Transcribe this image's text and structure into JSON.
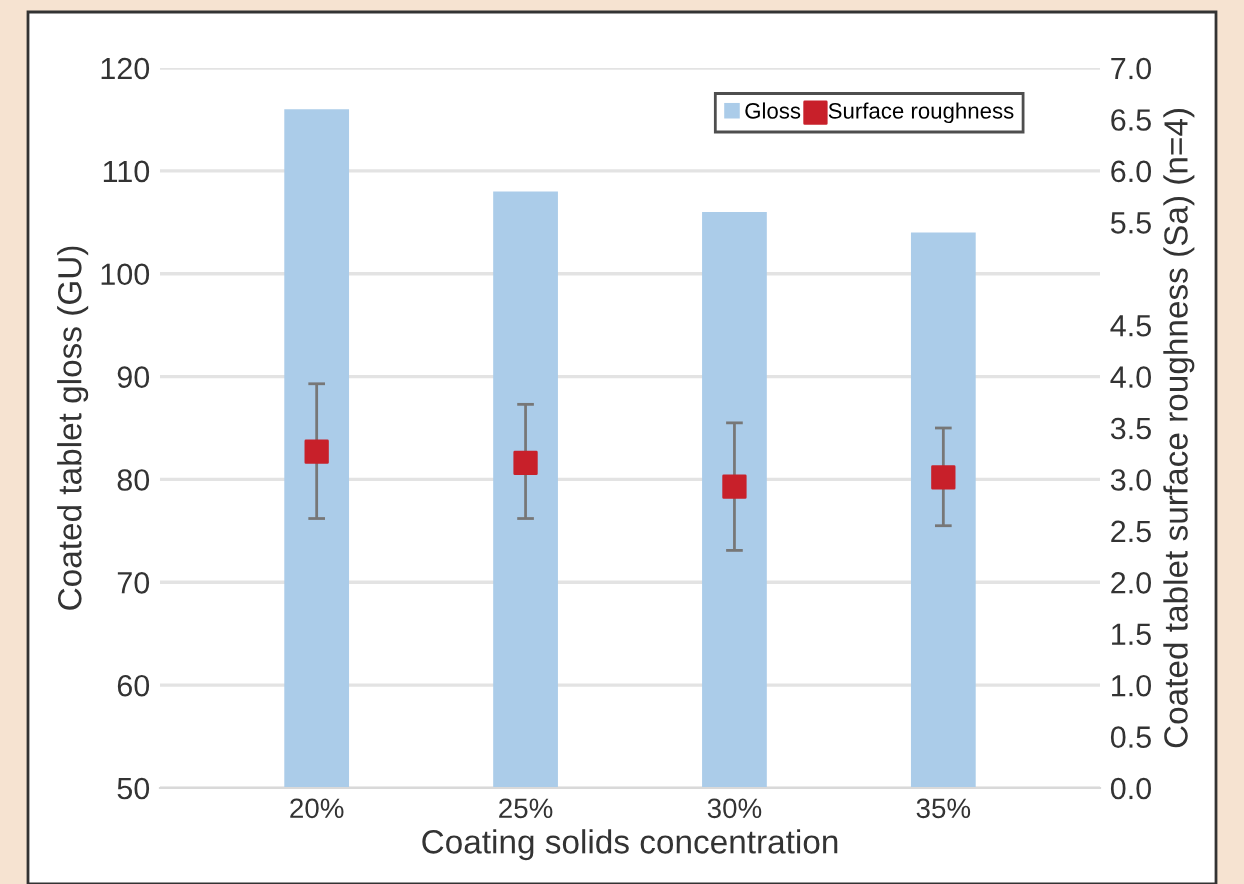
{
  "chart_data": {
    "type": "bar",
    "xlabel": "Coating solids concentration",
    "ylabel": "Coated tablet gloss (GU)",
    "y2label": "Coated tablet surface roughness (Sa) (n=4)",
    "categories": [
      "20%",
      "25%",
      "30%",
      "35%"
    ],
    "series": [
      {
        "name": "Gloss",
        "color": "#abcce9",
        "values": [
          116,
          108,
          106,
          104
        ]
      },
      {
        "name": "Surface roughness",
        "type": "scatter",
        "axis": "y2",
        "color": "#c8202a",
        "marker": "square",
        "values": [
          3.27,
          3.16,
          2.93,
          3.02
        ],
        "errors": [
          [
            2.62,
            3.93
          ],
          [
            2.62,
            3.73
          ],
          [
            2.31,
            3.55
          ],
          [
            2.55,
            3.5
          ]
        ]
      }
    ],
    "ylim": [
      50,
      120
    ],
    "yticks": [
      50,
      60,
      70,
      80,
      90,
      100,
      110,
      120
    ],
    "y2lim": [
      0,
      7
    ],
    "y2ticks": [
      {
        "value": 0,
        "label": "0.0"
      },
      {
        "value": 0.5,
        "label": "0.5"
      },
      {
        "value": 1,
        "label": "1.0"
      },
      {
        "value": 1.5,
        "label": "1.5"
      },
      {
        "value": 2,
        "label": "2.0"
      },
      {
        "value": 2.5,
        "label": "2.5"
      },
      {
        "value": 3,
        "label": "3.0"
      },
      {
        "value": 3.5,
        "label": "3.5"
      },
      {
        "value": 4,
        "label": "4.0"
      },
      {
        "value": 4.5,
        "label": "4.5"
      },
      {
        "value": 5.5,
        "label": "5.5"
      },
      {
        "value": 6,
        "label": "6.0"
      },
      {
        "value": 6.5,
        "label": "6.5"
      },
      {
        "value": 7,
        "label": "7.0"
      }
    ],
    "grid": "y",
    "legend": "top right"
  }
}
